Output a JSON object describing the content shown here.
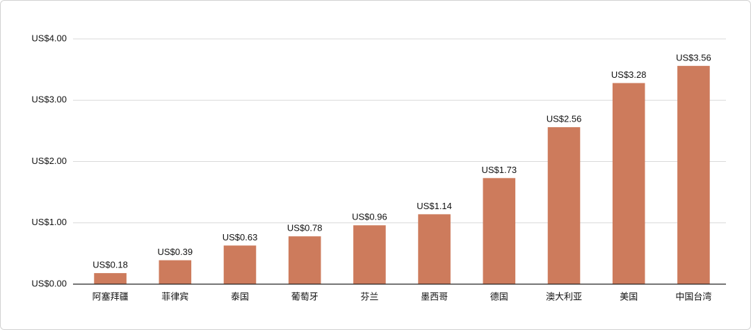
{
  "chart_data": {
    "type": "bar",
    "categories": [
      "阿塞拜疆",
      "菲律宾",
      "泰国",
      "葡萄牙",
      "芬兰",
      "墨西哥",
      "德国",
      "澳大利亚",
      "美国",
      "中国台湾"
    ],
    "values": [
      0.18,
      0.39,
      0.63,
      0.78,
      0.96,
      1.14,
      1.73,
      2.56,
      3.28,
      3.56
    ],
    "value_labels": [
      "US$0.18",
      "US$0.39",
      "US$0.63",
      "US$0.78",
      "US$0.96",
      "US$1.14",
      "US$1.73",
      "US$2.56",
      "US$3.28",
      "US$3.56"
    ],
    "color": "#cd7b5c",
    "ylim": [
      0,
      4
    ],
    "yticks": [
      {
        "value": 0,
        "label": "US$0.00"
      },
      {
        "value": 1,
        "label": "US$1.00"
      },
      {
        "value": 2,
        "label": "US$2.00"
      },
      {
        "value": 3,
        "label": "US$3.00"
      },
      {
        "value": 4,
        "label": "US$4.00"
      }
    ],
    "grid": true
  }
}
